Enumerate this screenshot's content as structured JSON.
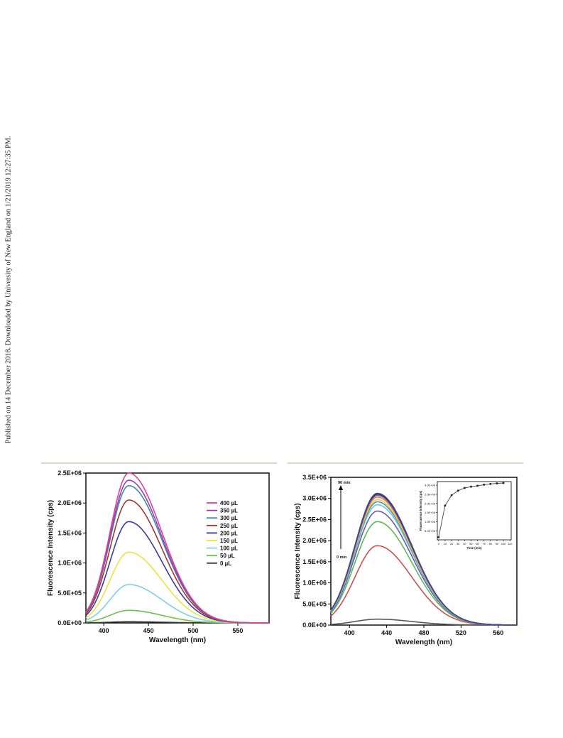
{
  "sidebar_note": "Published on 14 December 2018. Downloaded by University of New England on 1/21/2019 12:27:35 PM.",
  "chart_data": [
    {
      "type": "line",
      "xlabel": "Wavelength (nm)",
      "ylabel": "Fluorescence Intensity (cps)",
      "xlim": [
        380,
        585
      ],
      "ylim": [
        0,
        2500000
      ],
      "xticks": [
        400,
        450,
        500,
        550
      ],
      "yticks": [
        0,
        500000,
        1000000,
        1500000,
        2000000,
        2500000
      ],
      "ytick_labels": [
        "0.0E+00",
        "5.0E+05",
        "1.0E+06",
        "1.5E+06",
        "2.0E+06",
        "2.5E+06"
      ],
      "grid": false,
      "legend_position": "right",
      "peak_wavelength": 428,
      "series": [
        {
          "name": "400 µL",
          "color": "#e0409a",
          "peak": 2500000
        },
        {
          "name": "350 µL",
          "color": "#9b3fb0",
          "peak": 2380000
        },
        {
          "name": "300 µL",
          "color": "#3a8ba8",
          "peak": 2290000
        },
        {
          "name": "250 µL",
          "color": "#a33535",
          "peak": 2050000
        },
        {
          "name": "200 µL",
          "color": "#3a3a9a",
          "peak": 1690000
        },
        {
          "name": "150 µL",
          "color": "#f0e040",
          "peak": 1180000
        },
        {
          "name": "100 µL",
          "color": "#7ccfe8",
          "peak": 640000
        },
        {
          "name": "50 µL",
          "color": "#6cc04a",
          "peak": 210000
        },
        {
          "name": "0 µL",
          "color": "#333333",
          "peak": 20000
        }
      ]
    },
    {
      "type": "line",
      "xlabel": "Wavelength (nm)",
      "ylabel": "Fluorescence Intensity (cps)",
      "xlim": [
        380,
        580
      ],
      "ylim": [
        0,
        3500000
      ],
      "xticks": [
        400,
        440,
        480,
        520,
        560
      ],
      "yticks": [
        0,
        500000,
        1000000,
        1500000,
        2000000,
        2500000,
        3000000,
        3500000
      ],
      "ytick_labels": [
        "0.0E+00",
        "5.0E+05",
        "1.0E+06",
        "1.5E+06",
        "2.0E+06",
        "2.5E+06",
        "3.0E+06",
        "3.5E+06"
      ],
      "grid": false,
      "peak_wavelength": 430,
      "annotation_top": "90 min",
      "annotation_bottom": "0 min",
      "series": [
        {
          "color": "#555555",
          "peak": 140000
        },
        {
          "color": "#c85050",
          "peak": 1880000
        },
        {
          "color": "#5cb85c",
          "peak": 2450000
        },
        {
          "color": "#6a5aa8",
          "peak": 2700000
        },
        {
          "color": "#66c8e0",
          "peak": 2850000
        },
        {
          "color": "#4a8fbf",
          "peak": 2920000
        },
        {
          "color": "#f0d040",
          "peak": 2970000
        },
        {
          "color": "#e08040",
          "peak": 3030000
        },
        {
          "color": "#8a5ab0",
          "peak": 3070000
        },
        {
          "color": "#2a2a2a",
          "peak": 3100000
        },
        {
          "color": "#3a4aa0",
          "peak": 3120000
        }
      ],
      "inset": {
        "type": "line",
        "xlabel": "Time (min)",
        "ylabel": "Fluorescence Intensity (cps)",
        "xlim": [
          -2,
          112
        ],
        "ylim": [
          0,
          3200000
        ],
        "xticks": [
          0,
          10,
          20,
          30,
          40,
          50,
          60,
          70,
          80,
          90,
          100,
          110
        ],
        "yticks": [
          500000,
          1000000,
          1500000,
          2000000,
          2500000,
          3000000
        ],
        "ytick_labels": [
          "5.0E+05",
          "1.0E+06",
          "1.5E+06",
          "2.0E+06",
          "2.5E+06",
          "3.0E+06"
        ],
        "x": [
          0,
          10,
          20,
          30,
          40,
          50,
          60,
          70,
          80,
          90,
          100
        ],
        "y": [
          140000,
          1880000,
          2450000,
          2700000,
          2850000,
          2920000,
          2970000,
          3030000,
          3070000,
          3100000,
          3120000
        ]
      }
    }
  ]
}
